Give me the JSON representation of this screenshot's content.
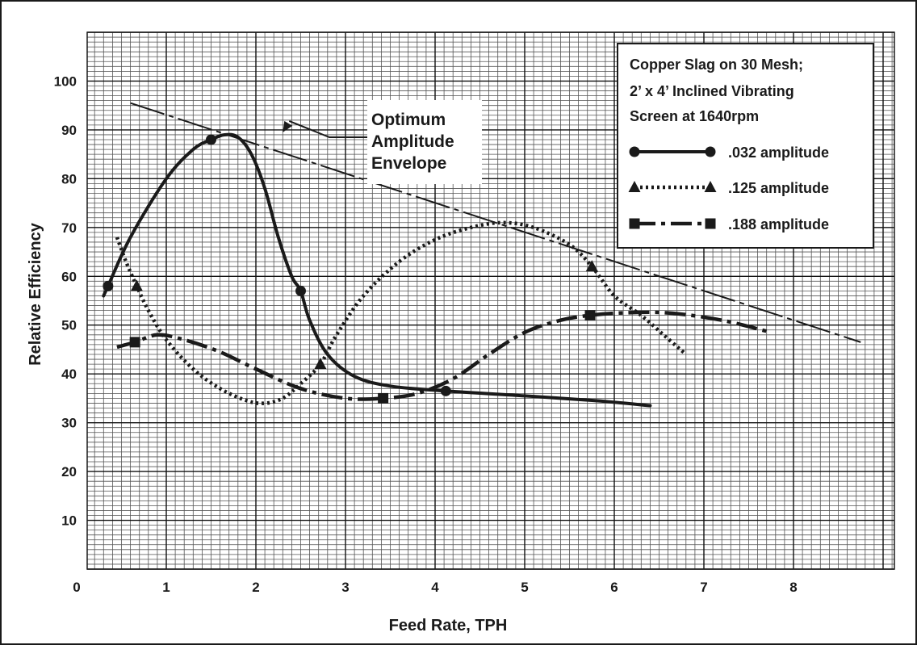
{
  "chart_data": {
    "type": "line",
    "xlabel": "Feed Rate, TPH",
    "ylabel": "Relative Efficiency",
    "xlim": [
      0,
      9
    ],
    "ylim": [
      0,
      110
    ],
    "x_ticks": [
      "0",
      "1",
      "2",
      "3",
      "4",
      "5",
      "6",
      "7",
      "8"
    ],
    "y_ticks": [
      "10",
      "20",
      "30",
      "40",
      "50",
      "60",
      "70",
      "80",
      "90",
      "100"
    ],
    "grid": true,
    "legend_position": "top-right",
    "legend_title": [
      "Copper Slag on 30 Mesh;",
      "2’ x 4’ Inclined Vibrating",
      "Screen at 1640rpm"
    ],
    "annotation": {
      "lines": [
        "Optimum",
        "Amplitude",
        "Envelope"
      ],
      "target_x": 2.3,
      "target_y": 89.5
    },
    "series": [
      {
        "name": ".032 amplitude",
        "style": "solid",
        "marker": "circle",
        "markers_x": [
          0.35,
          1.5,
          2.5,
          4.12
        ],
        "markers_y": [
          58,
          88,
          57,
          36.5
        ],
        "x": [
          0.3,
          0.35,
          0.6,
          1.0,
          1.3,
          1.5,
          1.65,
          1.8,
          1.95,
          2.1,
          2.25,
          2.4,
          2.5,
          2.6,
          2.8,
          3.1,
          3.5,
          4.12,
          5.0,
          5.8,
          6.4
        ],
        "y": [
          56,
          58,
          68,
          80,
          86,
          88,
          89,
          88.5,
          85,
          78,
          68,
          60,
          57,
          51,
          44,
          39.5,
          37.5,
          36.5,
          35.5,
          34.5,
          33.5
        ]
      },
      {
        "name": ".125 amplitude",
        "style": "dotted",
        "marker": "triangle",
        "markers_x": [
          0.67,
          2.72,
          5.75
        ],
        "markers_y": [
          58,
          42,
          62
        ],
        "x": [
          0.45,
          0.55,
          0.67,
          0.8,
          1.0,
          1.3,
          1.6,
          1.9,
          2.1,
          2.3,
          2.5,
          2.72,
          2.9,
          3.2,
          3.6,
          4.0,
          4.4,
          4.75,
          5.1,
          5.5,
          5.75,
          6.0,
          6.3,
          6.55,
          6.8
        ],
        "y": [
          68,
          63,
          58,
          53,
          47,
          41,
          37,
          34.5,
          34,
          35,
          38,
          42,
          48,
          56,
          63,
          67.5,
          70,
          71,
          70,
          66.5,
          62,
          56,
          52,
          48,
          44
        ]
      },
      {
        "name": ".188 amplitude",
        "style": "dashdot",
        "marker": "square",
        "markers_x": [
          0.65,
          3.42,
          5.73
        ],
        "markers_y": [
          46.5,
          35,
          52
        ],
        "x": [
          0.45,
          0.65,
          0.9,
          1.2,
          1.6,
          2.0,
          2.5,
          3.0,
          3.42,
          3.8,
          4.2,
          4.6,
          5.0,
          5.4,
          5.73,
          6.1,
          6.6,
          7.2,
          7.75
        ],
        "y": [
          45.5,
          46.5,
          48,
          47,
          44.5,
          41,
          37,
          35,
          35,
          36,
          39,
          44,
          48.5,
          51,
          52,
          52.5,
          52.5,
          51,
          48.5
        ]
      }
    ],
    "envelope": {
      "style": "long-dash",
      "x": [
        0.6,
        8.75
      ],
      "y": [
        95.5,
        46.5
      ]
    }
  }
}
